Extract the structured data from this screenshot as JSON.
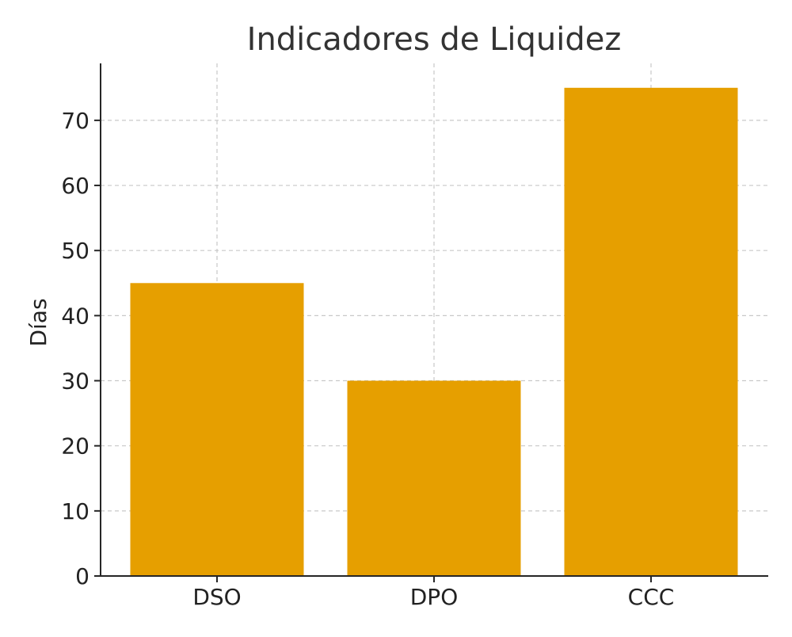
{
  "chart_data": {
    "type": "bar",
    "title": "Indicadores de Liquidez",
    "xlabel": "",
    "ylabel": "Días",
    "categories": [
      "DSO",
      "DPO",
      "CCC"
    ],
    "values": [
      45,
      30,
      75
    ],
    "ylim": [
      0,
      78.75
    ],
    "yticks": [
      0,
      10,
      20,
      30,
      40,
      50,
      60,
      70
    ],
    "grid": true,
    "bar_color": "#E69F00"
  }
}
